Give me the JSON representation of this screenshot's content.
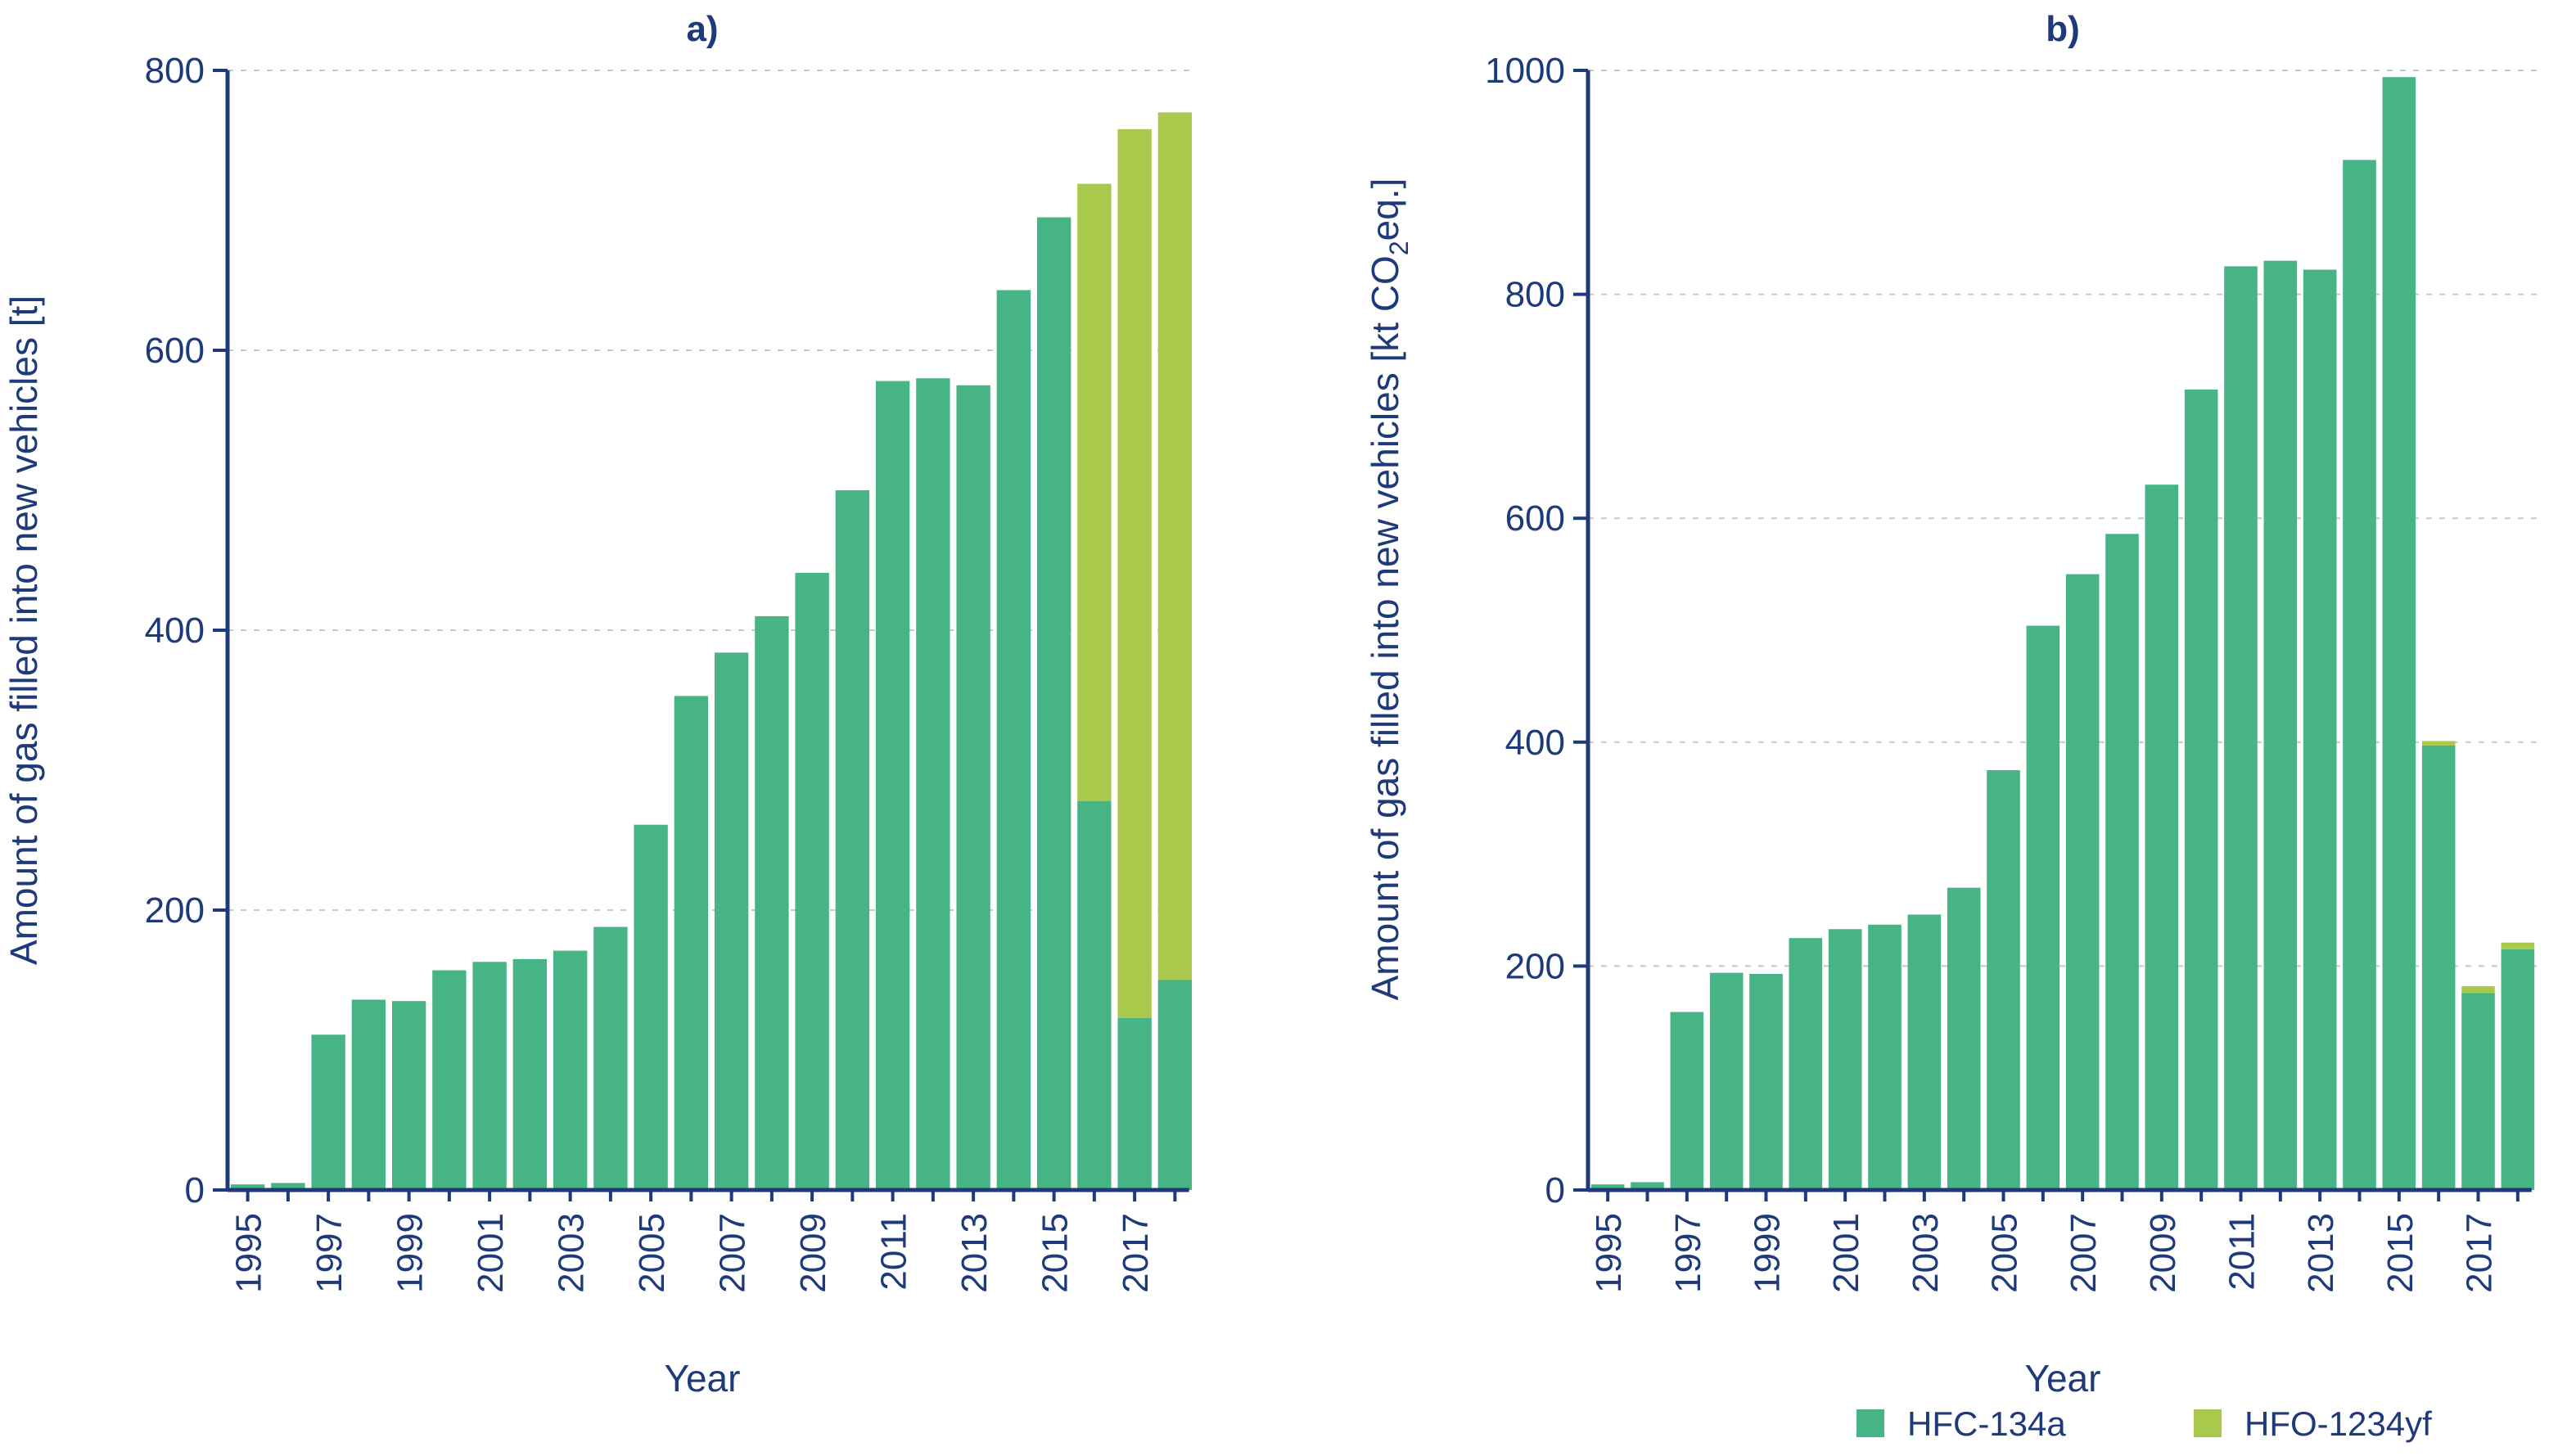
{
  "colors": {
    "axis": "#1f3a7a",
    "grid": "#c8c8c8",
    "hfc134a": "#47b486",
    "hfo1234yf": "#a8c94c"
  },
  "legend": {
    "items": [
      {
        "label": "HFC-134a",
        "color": "#47b486"
      },
      {
        "label": "HFO-1234yf",
        "color": "#a8c94c"
      }
    ]
  },
  "chart_data": [
    {
      "type": "bar",
      "stacked": true,
      "title": "a)",
      "xlabel": "Year",
      "ylabel": "Amount of gas filled into new vehicles [t]",
      "ylim": [
        0,
        800
      ],
      "yticks": [
        0,
        200,
        400,
        600,
        800
      ],
      "categories": [
        "1995",
        "1996",
        "1997",
        "1998",
        "1999",
        "2000",
        "2001",
        "2002",
        "2003",
        "2004",
        "2005",
        "2006",
        "2007",
        "2008",
        "2009",
        "2010",
        "2011",
        "2012",
        "2013",
        "2014",
        "2015",
        "2016",
        "2017",
        "2018"
      ],
      "xtick_labels": [
        "1995",
        "1997",
        "1999",
        "2001",
        "2003",
        "2005",
        "2007",
        "2009",
        "2011",
        "2013",
        "2015",
        "2017"
      ],
      "series": [
        {
          "name": "HFC-134a",
          "values": [
            4,
            5,
            111,
            136,
            135,
            157,
            163,
            165,
            171,
            188,
            261,
            353,
            384,
            410,
            441,
            500,
            578,
            580,
            575,
            643,
            695,
            278,
            123,
            150
          ]
        },
        {
          "name": "HFO-1234yf",
          "values": [
            0,
            0,
            0,
            0,
            0,
            0,
            0,
            0,
            0,
            0,
            0,
            0,
            0,
            0,
            0,
            0,
            0,
            0,
            0,
            0,
            0,
            441,
            635,
            620
          ]
        }
      ]
    },
    {
      "type": "bar",
      "stacked": true,
      "title": "b)",
      "xlabel": "Year",
      "ylabel": "Amount of gas filled into new vehicles [kt CO",
      "ylabel_sub": "2",
      "ylabel_tail": "eq.]",
      "ylim": [
        0,
        1000
      ],
      "yticks": [
        0,
        200,
        400,
        600,
        800,
        1000
      ],
      "categories": [
        "1995",
        "1996",
        "1997",
        "1998",
        "1999",
        "2000",
        "2001",
        "2002",
        "2003",
        "2004",
        "2005",
        "2006",
        "2007",
        "2008",
        "2009",
        "2010",
        "2011",
        "2012",
        "2013",
        "2014",
        "2015",
        "2016",
        "2017",
        "2018"
      ],
      "xtick_labels": [
        "1995",
        "1997",
        "1999",
        "2001",
        "2003",
        "2005",
        "2007",
        "2009",
        "2011",
        "2013",
        "2015",
        "2017"
      ],
      "series": [
        {
          "name": "HFC-134a",
          "values": [
            5,
            7,
            159,
            194,
            193,
            225,
            233,
            237,
            246,
            270,
            375,
            504,
            550,
            586,
            630,
            715,
            825,
            830,
            822,
            920,
            994,
            397,
            176,
            215
          ]
        },
        {
          "name": "HFO-1234yf",
          "values": [
            0,
            0,
            0,
            0,
            0,
            0,
            0,
            0,
            0,
            0,
            0,
            0,
            0,
            0,
            0,
            0,
            0,
            0,
            0,
            0,
            0,
            4,
            6,
            6
          ]
        }
      ]
    }
  ]
}
